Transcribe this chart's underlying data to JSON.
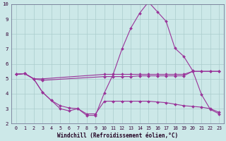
{
  "background_color": "#cce8e8",
  "grid_color": "#aacccc",
  "line_color": "#993399",
  "xlabel": "Windchill (Refroidissement éolien,°C)",
  "xlim": [
    -0.5,
    23.5
  ],
  "ylim": [
    2,
    10
  ],
  "yticks": [
    2,
    3,
    4,
    5,
    6,
    7,
    8,
    9,
    10
  ],
  "xticks": [
    0,
    1,
    2,
    3,
    4,
    5,
    6,
    7,
    8,
    9,
    10,
    11,
    12,
    13,
    14,
    15,
    16,
    17,
    18,
    19,
    20,
    21,
    22,
    23
  ],
  "series1_x": [
    0,
    1,
    2,
    3,
    10,
    11,
    12,
    13,
    14,
    15,
    16,
    17,
    18,
    19,
    20,
    21,
    22,
    23
  ],
  "series1_y": [
    5.3,
    5.35,
    5.0,
    5.0,
    5.3,
    5.3,
    5.3,
    5.3,
    5.3,
    5.3,
    5.3,
    5.3,
    5.3,
    5.3,
    5.5,
    5.5,
    5.5,
    5.5
  ],
  "series2_x": [
    0,
    1,
    2,
    3,
    4,
    5,
    6,
    7,
    8,
    9,
    10,
    11,
    12,
    13,
    14,
    15,
    16,
    17,
    18,
    19,
    20,
    21,
    22,
    23
  ],
  "series2_y": [
    5.3,
    5.35,
    5.0,
    4.1,
    3.55,
    3.0,
    2.85,
    3.0,
    2.55,
    2.55,
    4.05,
    5.3,
    7.0,
    8.4,
    9.4,
    10.15,
    9.5,
    8.85,
    7.05,
    6.5,
    5.55,
    3.95,
    2.95,
    2.65
  ],
  "series3_x": [
    0,
    1,
    2,
    3,
    10,
    11,
    12,
    13,
    14,
    15,
    16,
    17,
    18,
    19,
    20,
    21,
    22,
    23
  ],
  "series3_y": [
    5.3,
    5.35,
    5.0,
    4.9,
    5.15,
    5.15,
    5.15,
    5.15,
    5.2,
    5.2,
    5.2,
    5.2,
    5.2,
    5.2,
    5.5,
    5.5,
    5.5,
    5.5
  ],
  "series4_x": [
    0,
    1,
    2,
    3,
    4,
    5,
    6,
    7,
    8,
    9,
    10,
    11,
    12,
    13,
    14,
    15,
    16,
    17,
    18,
    19,
    20,
    21,
    22,
    23
  ],
  "series4_y": [
    5.3,
    5.35,
    5.0,
    4.1,
    3.55,
    3.2,
    3.05,
    3.0,
    2.65,
    2.65,
    3.5,
    3.5,
    3.5,
    3.5,
    3.5,
    3.5,
    3.45,
    3.4,
    3.3,
    3.2,
    3.15,
    3.1,
    3.0,
    2.75
  ]
}
